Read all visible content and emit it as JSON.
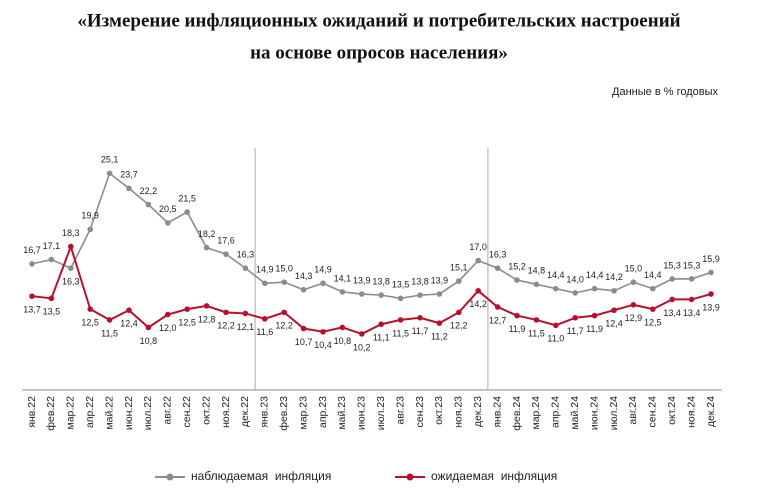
{
  "chart_data": {
    "type": "line",
    "title": [
      "«Измерение инфляционных ожиданий и потребительских настроений",
      "на основе опросов населения»"
    ],
    "subtitle": "Данные в  % годовых",
    "categories": [
      "янв.22",
      "фев.22",
      "мар.22",
      "апр.22",
      "май.22",
      "июн.22",
      "июл.22",
      "авг.22",
      "сен.22",
      "окт.22",
      "ноя.22",
      "дек.22",
      "янв.23",
      "фев.23",
      "мар.23",
      "апр.23",
      "май.23",
      "июн.23",
      "июл.23",
      "авг.23",
      "сен.23",
      "окт.23",
      "ноя.23",
      "дек.23",
      "янв.24",
      "фев.24",
      "мар.24",
      "апр.24",
      "май.24",
      "июн.24",
      "июл.24",
      "авг.24",
      "сен.24",
      "окт.24",
      "ноя.24",
      "дек.24"
    ],
    "ylim": [
      5,
      28
    ],
    "series": [
      {
        "name": "наблюдаемая  инфляция",
        "color": "#8c8c8c",
        "values": [
          16.7,
          17.1,
          16.3,
          19.9,
          25.1,
          23.7,
          22.2,
          20.5,
          21.5,
          18.2,
          17.6,
          16.3,
          14.9,
          15.0,
          14.3,
          14.9,
          14.1,
          13.9,
          13.8,
          13.5,
          13.8,
          13.9,
          15.1,
          17.0,
          16.3,
          15.2,
          14.8,
          14.4,
          14.0,
          14.4,
          14.2,
          15.0,
          14.4,
          15.3,
          15.3,
          15.9
        ],
        "value_labels": [
          "16,7",
          "17,1",
          "16,3",
          "19,9",
          "25,1",
          "23,7",
          "22,2",
          "20,5",
          "21,5",
          "18,2",
          "17,6",
          "16,3",
          "14,9",
          "15,0",
          "14,3",
          "14,9",
          "14,1",
          "13,9",
          "13,8",
          "13,5",
          "13,8",
          "13,9",
          "15,1",
          "17,0",
          "16,3",
          "15,2",
          "14,8",
          "14,4",
          "14,0",
          "14,4",
          "14,2",
          "15,0",
          "14,4",
          "15,3",
          "15,3",
          "15,9"
        ]
      },
      {
        "name": "ожидаемая  инфляция",
        "color": "#b5112f",
        "values": [
          13.7,
          13.5,
          18.3,
          12.5,
          11.5,
          12.4,
          10.8,
          12.0,
          12.5,
          12.8,
          12.2,
          12.1,
          11.6,
          12.2,
          10.7,
          10.4,
          10.8,
          10.2,
          11.1,
          11.5,
          11.7,
          11.2,
          12.2,
          14.2,
          12.7,
          11.9,
          11.5,
          11.0,
          11.7,
          11.9,
          12.4,
          12.9,
          12.5,
          13.4,
          13.4,
          13.9
        ],
        "value_labels": [
          "13,7",
          "13,5",
          "18,3",
          "12,5",
          "11,5",
          "12,4",
          "10,8",
          "12,0",
          "12,5",
          "12,8",
          "12,2",
          "12,1",
          "11,6",
          "12,2",
          "10,7",
          "10,4",
          "10,8",
          "10,2",
          "11,1",
          "11,5",
          "11,7",
          "11,2",
          "12,2",
          "14,2",
          "12,7",
          "11,9",
          "11,5",
          "11,0",
          "11,7",
          "11,9",
          "12,4",
          "12,9",
          "12,5",
          "13,4",
          "13,4",
          "13,9"
        ]
      }
    ]
  }
}
